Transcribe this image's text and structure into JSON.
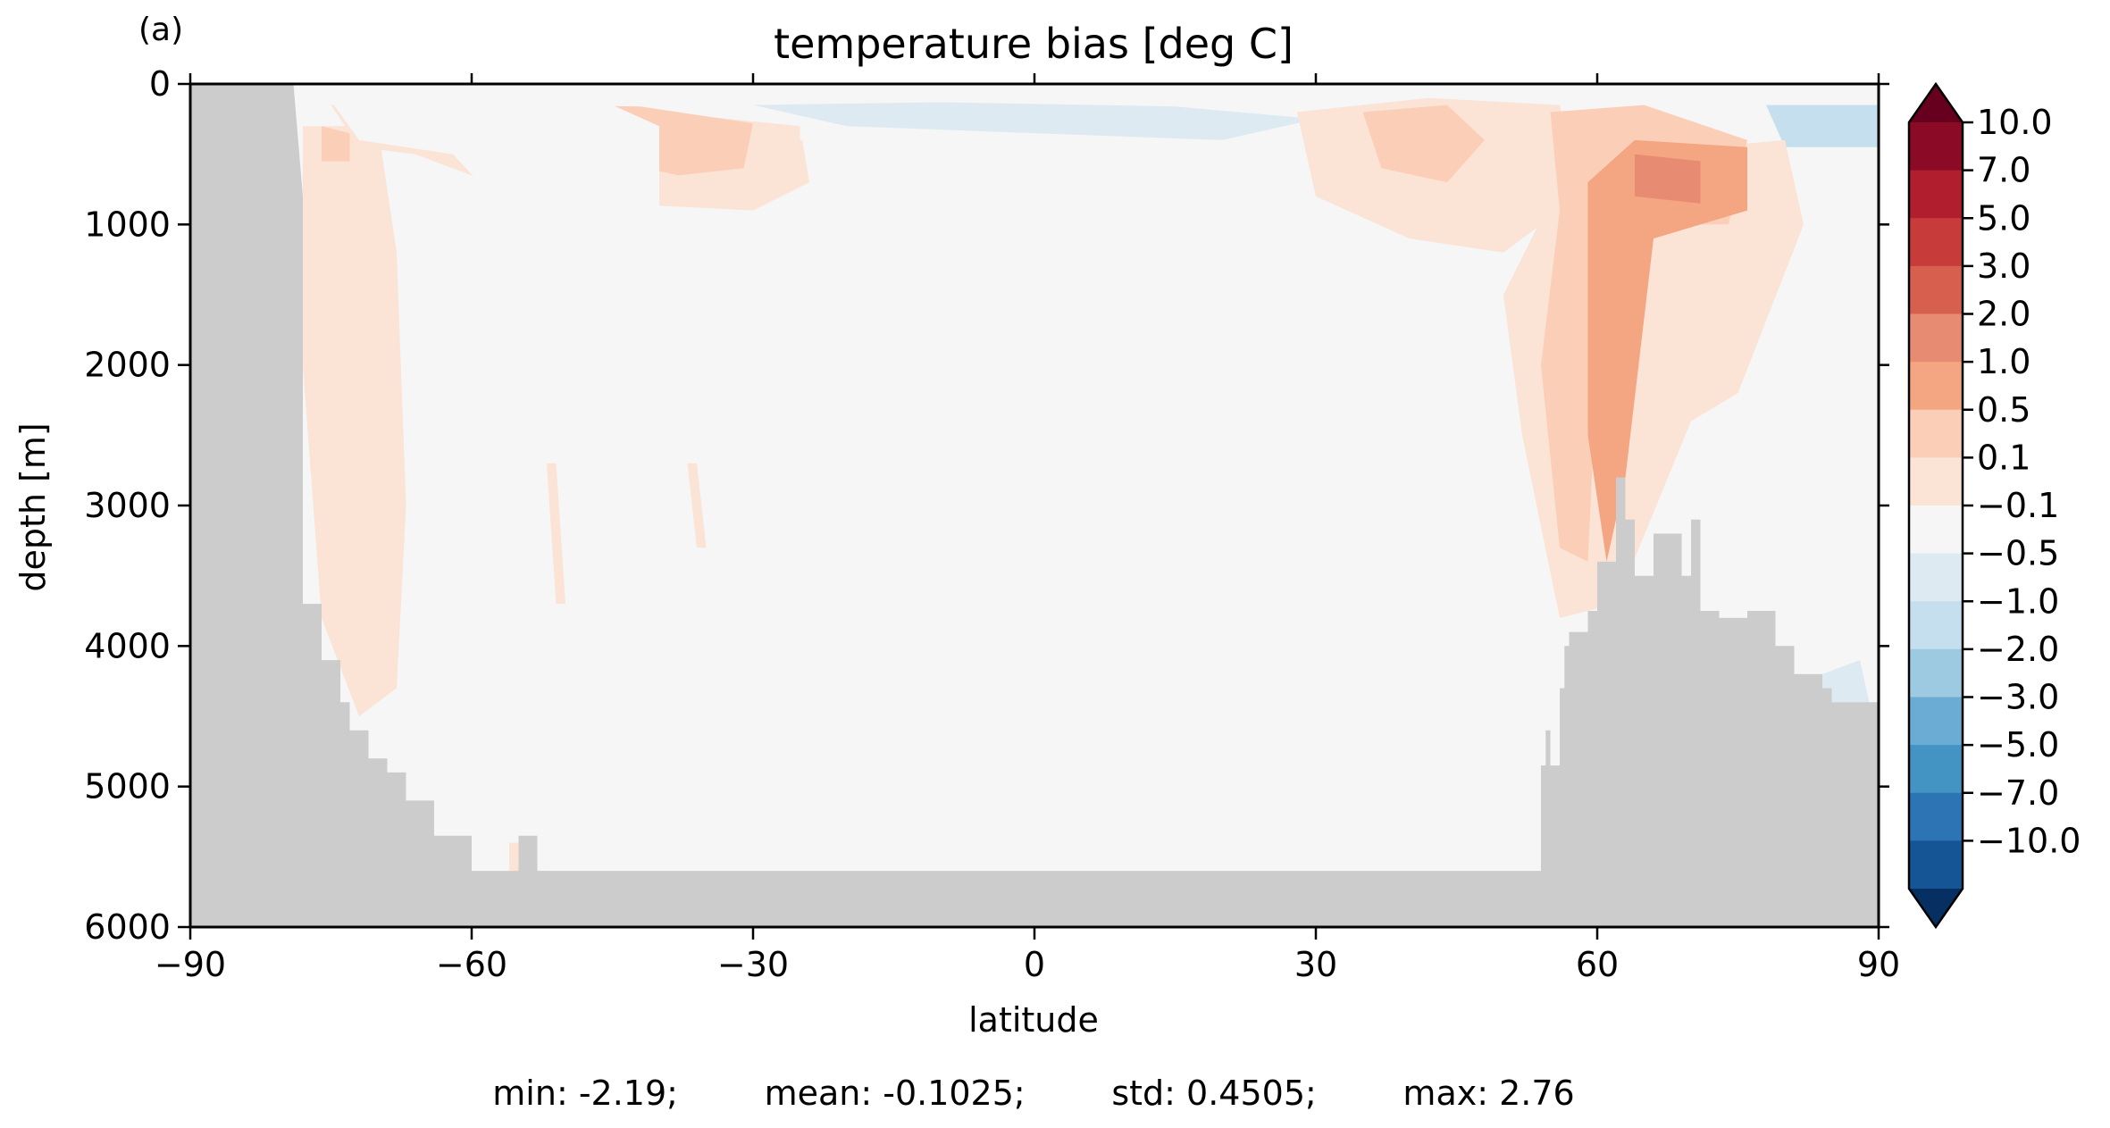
{
  "panel_label": "(a)",
  "chart_data": {
    "type": "heatmap",
    "title": "temperature bias [deg C]",
    "xlabel": "latitude",
    "ylabel": "depth [m]",
    "xlim": [
      -90,
      90
    ],
    "ylim": [
      6000,
      0
    ],
    "y_inverted": true,
    "x_ticks": [
      -90,
      -60,
      -30,
      0,
      30,
      60,
      90
    ],
    "x_tick_labels": [
      "−90",
      "−60",
      "−30",
      "0",
      "30",
      "60",
      "90"
    ],
    "y_ticks": [
      0,
      1000,
      2000,
      3000,
      4000,
      5000,
      6000
    ],
    "y_tick_labels": [
      "0",
      "1000",
      "2000",
      "3000",
      "4000",
      "5000",
      "6000"
    ],
    "grid": false,
    "colorbar": {
      "placement": "right",
      "extend": "both",
      "labels": [
        "10.0",
        "7.0",
        "5.0",
        "3.0",
        "2.0",
        "1.0",
        "0.5",
        "0.1",
        "−0.1",
        "−0.5",
        "−1.0",
        "−2.0",
        "−3.0",
        "−5.0",
        "−7.0",
        "−10.0"
      ],
      "colors": [
        "#8b0a26",
        "#b11f2f",
        "#c73b3b",
        "#d6604d",
        "#e78b72",
        "#f4a582",
        "#fbcfb7",
        "#fbe3d6",
        "#f5f6f5",
        "#deeaf2",
        "#c6dfee",
        "#9dcae1",
        "#6aacd3",
        "#4393c3",
        "#2d74b4",
        "#155596"
      ],
      "over_color": "#67001f",
      "under_color": "#053061"
    },
    "background_color": "#f5f6f5",
    "land_color": "#cccccc",
    "bathymetry": {
      "lat": [
        -90,
        -79,
        -78,
        -78,
        -76,
        -76,
        -74,
        -74,
        -73,
        -73,
        -71,
        -71,
        -69,
        -69,
        -67,
        -67,
        -64,
        -64,
        -60,
        -60,
        -55,
        -55,
        -53,
        -53,
        -50,
        -50,
        54,
        54,
        54.5,
        54.5,
        55,
        55,
        56,
        56,
        56.5,
        56.5,
        57,
        57,
        59,
        59,
        60,
        60,
        62,
        62,
        63,
        63,
        64,
        64,
        66,
        66,
        69,
        69,
        70,
        70,
        71,
        71,
        73,
        73,
        76,
        76,
        79,
        79,
        81,
        81,
        84,
        84,
        85,
        85,
        87,
        87,
        90
      ],
      "depth": [
        0,
        0,
        800,
        3700,
        3700,
        4100,
        4100,
        4400,
        4400,
        4600,
        4600,
        4800,
        4800,
        4900,
        4900,
        5100,
        5100,
        5350,
        5350,
        5600,
        5600,
        5350,
        5350,
        5600,
        5600,
        5600,
        5600,
        4850,
        4850,
        4600,
        4600,
        4850,
        4850,
        4300,
        4300,
        4000,
        4000,
        3900,
        3900,
        3750,
        3750,
        3400,
        3400,
        2800,
        2800,
        3100,
        3100,
        3500,
        3500,
        3200,
        3200,
        3500,
        3500,
        3100,
        3100,
        3750,
        3750,
        3800,
        3800,
        3750,
        3750,
        4000,
        4000,
        4200,
        4200,
        4300,
        4300,
        4400,
        4400,
        4400,
        4400
      ]
    },
    "regions": [
      {
        "level": "0.1",
        "points": [
          [
            -78,
            300
          ],
          [
            -70,
            300
          ],
          [
            -68,
            1200
          ],
          [
            -67,
            3000
          ],
          [
            -68,
            4300
          ],
          [
            -72,
            4500
          ],
          [
            -76,
            3800
          ],
          [
            -78,
            2000
          ]
        ]
      },
      {
        "level": "0.1",
        "points": [
          [
            -75,
            150
          ],
          [
            -66,
            120
          ],
          [
            -55,
            150
          ],
          [
            -40,
            200
          ],
          [
            -25,
            300
          ],
          [
            -24,
            700
          ],
          [
            -30,
            900
          ],
          [
            -45,
            850
          ],
          [
            -58,
            700
          ],
          [
            -66,
            500
          ],
          [
            -72,
            450
          ]
        ]
      },
      {
        "level": "0.5",
        "points": [
          [
            -76,
            300
          ],
          [
            -73,
            350
          ],
          [
            -73,
            550
          ],
          [
            -76,
            550
          ]
        ]
      },
      {
        "level": "0.5",
        "points": [
          [
            -52,
            150
          ],
          [
            -42,
            160
          ],
          [
            -30,
            280
          ],
          [
            -31,
            600
          ],
          [
            -38,
            650
          ],
          [
            -48,
            500
          ],
          [
            -53,
            350
          ]
        ]
      },
      {
        "level": "0.1",
        "points": [
          [
            -52,
            2700
          ],
          [
            -51,
            2700
          ],
          [
            -50,
            3700
          ],
          [
            -51,
            3700
          ]
        ]
      },
      {
        "level": "0.1",
        "points": [
          [
            -37,
            2700
          ],
          [
            -36,
            2700
          ],
          [
            -35,
            3300
          ],
          [
            -36,
            3300
          ]
        ]
      },
      {
        "level": "0.1",
        "points": [
          [
            -56,
            5400
          ],
          [
            -53,
            5400
          ],
          [
            -52,
            5600
          ],
          [
            -56,
            5600
          ]
        ]
      },
      {
        "level": "-0.1",
        "points": [
          [
            -75,
            120
          ],
          [
            -60,
            100
          ],
          [
            -45,
            150
          ],
          [
            -40,
            300
          ],
          [
            -40,
            900
          ],
          [
            -48,
            1400
          ],
          [
            -55,
            1000
          ],
          [
            -62,
            500
          ],
          [
            -72,
            400
          ]
        ]
      },
      {
        "level": "-0.1",
        "points": [
          [
            -25,
            80
          ],
          [
            0,
            80
          ],
          [
            20,
            150
          ],
          [
            40,
            200
          ],
          [
            45,
            300
          ],
          [
            40,
            700
          ],
          [
            30,
            1000
          ],
          [
            15,
            1200
          ],
          [
            5,
            800
          ],
          [
            -10,
            500
          ],
          [
            -25,
            400
          ]
        ]
      },
      {
        "level": "-0.5",
        "points": [
          [
            -30,
            150
          ],
          [
            -10,
            130
          ],
          [
            15,
            160
          ],
          [
            30,
            250
          ],
          [
            20,
            400
          ],
          [
            0,
            350
          ],
          [
            -20,
            300
          ]
        ]
      },
      {
        "level": "-0.1",
        "points": [
          [
            30,
            1100
          ],
          [
            42,
            900
          ],
          [
            45,
            1300
          ],
          [
            40,
            1800
          ],
          [
            33,
            1850
          ],
          [
            30,
            1500
          ]
        ]
      },
      {
        "level": "-0.1",
        "points": [
          [
            -55,
            4700
          ],
          [
            -48,
            4700
          ],
          [
            -48,
            5600
          ],
          [
            -55,
            5600
          ]
        ]
      },
      {
        "level": "-0.1",
        "points": [
          [
            43,
            200
          ],
          [
            52,
            200
          ],
          [
            56,
            600
          ],
          [
            52,
            1200
          ],
          [
            46,
            1000
          ]
        ]
      },
      {
        "level": "-0.1",
        "points": [
          [
            73,
            80
          ],
          [
            90,
            80
          ],
          [
            90,
            1300
          ],
          [
            83,
            1300
          ],
          [
            78,
            800
          ]
        ]
      },
      {
        "level": "-1.0",
        "points": [
          [
            78,
            150
          ],
          [
            90,
            150
          ],
          [
            90,
            450
          ],
          [
            80,
            450
          ]
        ]
      },
      {
        "level": "-0.5",
        "points": [
          [
            84,
            4200
          ],
          [
            88,
            4100
          ],
          [
            89,
            4400
          ],
          [
            84,
            4400
          ]
        ]
      },
      {
        "level": "0.1",
        "points": [
          [
            28,
            200
          ],
          [
            42,
            100
          ],
          [
            56,
            150
          ],
          [
            58,
            800
          ],
          [
            50,
            1200
          ],
          [
            40,
            1100
          ],
          [
            30,
            800
          ]
        ]
      },
      {
        "level": "0.1",
        "points": [
          [
            50,
            1500
          ],
          [
            56,
            700
          ],
          [
            63,
            500
          ],
          [
            80,
            400
          ],
          [
            82,
            1000
          ],
          [
            75,
            2200
          ],
          [
            70,
            2400
          ],
          [
            62,
            3700
          ],
          [
            56,
            3800
          ],
          [
            52,
            2500
          ]
        ]
      },
      {
        "level": "0.5",
        "points": [
          [
            55,
            200
          ],
          [
            65,
            150
          ],
          [
            76,
            400
          ],
          [
            74,
            1000
          ],
          [
            64,
            1000
          ],
          [
            60,
            2000
          ],
          [
            59,
            3400
          ],
          [
            56,
            3300
          ],
          [
            54,
            2000
          ],
          [
            56,
            900
          ]
        ]
      },
      {
        "level": "0.5",
        "points": [
          [
            35,
            200
          ],
          [
            44,
            150
          ],
          [
            48,
            400
          ],
          [
            44,
            700
          ],
          [
            37,
            600
          ]
        ]
      },
      {
        "level": "1.0",
        "points": [
          [
            59,
            700
          ],
          [
            64,
            400
          ],
          [
            76,
            450
          ],
          [
            76,
            900
          ],
          [
            66,
            1100
          ],
          [
            63,
            2800
          ],
          [
            61,
            3400
          ],
          [
            59,
            2500
          ],
          [
            59,
            1300
          ]
        ]
      },
      {
        "level": "2.0",
        "points": [
          [
            64,
            500
          ],
          [
            71,
            550
          ],
          [
            71,
            850
          ],
          [
            64,
            800
          ]
        ]
      }
    ],
    "stats_text": "min: -2.19;        mean: -0.1025;        std: 0.4505;        max: 2.76"
  }
}
